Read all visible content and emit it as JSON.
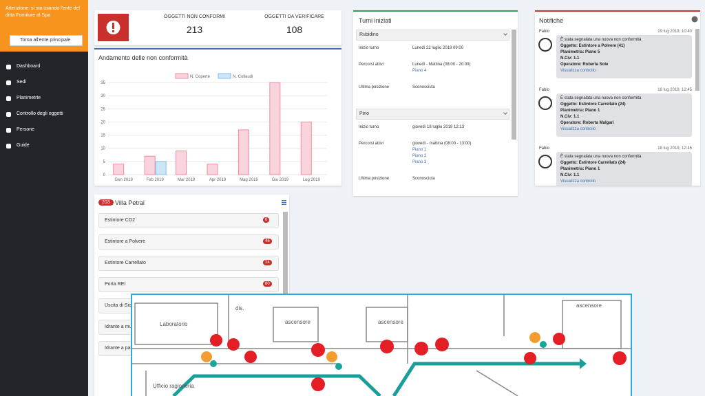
{
  "sidebar": {
    "notice": "Attenzione: si sta usando l'ente del ditta Forniture al Spa",
    "button": "Torna all'ente principale",
    "menu": [
      "Dashboard",
      "Sedi",
      "Planimetrie",
      "Controllo degli oggetti",
      "Persone",
      "Guide"
    ]
  },
  "summary": [
    {
      "label": "OGGETTI NON CONFORMI",
      "value": 213
    },
    {
      "label": "OGGETTI DA VERIFICARE",
      "value": 108
    }
  ],
  "chart_data": {
    "type": "bar",
    "title": "Andamento delle non conformità",
    "categories": [
      "Gen 2019",
      "Feb 2019",
      "Mar 2019",
      "Apr 2019",
      "Mag 2019",
      "Giu 2019",
      "Lug 2019"
    ],
    "series": [
      {
        "name": "N. Coperte",
        "color": "#f08aa0",
        "values": [
          4,
          7,
          9,
          4,
          17,
          35,
          20
        ]
      },
      {
        "name": "N. Collaudi",
        "color": "#7fc0ea",
        "values": [
          0,
          5,
          0,
          0,
          0,
          0,
          0
        ]
      }
    ],
    "ylim": [
      0,
      35
    ],
    "yticks": [
      0,
      5,
      10,
      15,
      20,
      25,
      30,
      35
    ],
    "grid": true,
    "legend": "top"
  },
  "shifts": {
    "title": "Turni iniziati",
    "sections": [
      {
        "name": "Rubidino",
        "rows": [
          [
            "Inizio turno",
            "Lunedì 22 luglio 2019 09:00"
          ],
          [
            "Percorsi attivi",
            "Lunedì - Mattina (08:00 - 20:00)",
            "Piano 4"
          ],
          [
            "Ultima posizione",
            "Sconosciuta"
          ]
        ]
      },
      {
        "name": "Pino",
        "rows": [
          [
            "Inizio turno",
            "giovedì 18 luglio 2019 12:13"
          ],
          [
            "Percorsi attivi",
            "giovedì - mattina (08:00 - 13:00)",
            "Piano 1",
            "Piano 2",
            "Piano 3"
          ],
          [
            "Ultima posizione",
            "Sconosciuta"
          ]
        ]
      },
      {
        "name": "Rubidino",
        "rows": []
      }
    ]
  },
  "notifications": {
    "title": "Notifiche",
    "items": [
      {
        "author": "Fabio",
        "date": "19 lug 2019, 10:40",
        "lines": [
          "È stata segnalata una nuova non conformità",
          "Oggetto: Estintore a Polvere (41)",
          "Planimetria: Piano 5",
          "N.Civ: 1.1",
          "Operatore: Roberta Sole"
        ],
        "link": "Visualizza controllo"
      },
      {
        "author": "Fabio",
        "date": "18 lug 2019, 12:45",
        "lines": [
          "È stata segnalata una nuova non conformità",
          "Oggetto: Estintore Carrellato (24)",
          "Planimetria: Piano 1",
          "N.Civ: 1.1",
          "Operatore: Roberta Malgari"
        ],
        "link": "Visualizza controllo"
      },
      {
        "author": "Fabio",
        "date": "18 lug 2019, 12:45",
        "lines": [
          "È stata segnalata una nuova non conformità",
          "Oggetto: Estintore Carrellato (24)",
          "Planimetria: Piano 1",
          "N.Civ: 1.1"
        ],
        "link": "Visualizza controllo"
      }
    ]
  },
  "site": {
    "badge": 203,
    "name": "Villa Petrai",
    "items": [
      {
        "name": "Estintore CO2",
        "count": 6
      },
      {
        "name": "Estintore a Polvere",
        "count": 46
      },
      {
        "name": "Estintore Carrellato",
        "count": 24
      },
      {
        "name": "Porta REI",
        "count": 80
      },
      {
        "name": "Uscita di Sicurezza"
      },
      {
        "name": "Idrante a muro"
      },
      {
        "name": "Idrante a parete"
      }
    ]
  },
  "floorplan": {
    "labels": [
      "Laboratorio",
      "dis.",
      "ascensore",
      "ascensore",
      "ascensore",
      "Ufficio ragioneria"
    ]
  }
}
